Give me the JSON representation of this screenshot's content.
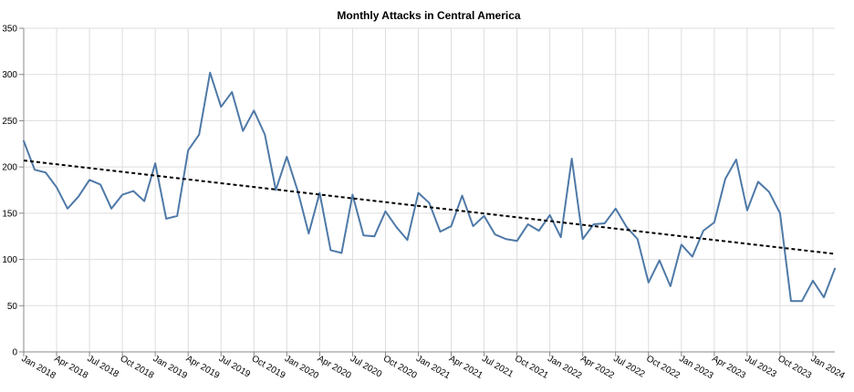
{
  "chart_data": {
    "type": "line",
    "title": "Monthly Attacks in Central America",
    "xlabel": "",
    "ylabel": "",
    "ylim": [
      0,
      350
    ],
    "y_ticks": [
      0,
      50,
      100,
      150,
      200,
      250,
      300,
      350
    ],
    "grid": true,
    "legend": "none",
    "x_tick_labels": [
      "Jan 2018",
      "Apr 2018",
      "Jul 2018",
      "Oct 2018",
      "Jan 2019",
      "Apr 2019",
      "Jul 2019",
      "Oct 2019",
      "Jan 2020",
      "Apr 2020",
      "Jul 2020",
      "Oct 2020",
      "Jan 2021",
      "Apr 2021",
      "Jul 2021",
      "Oct 2021",
      "Jan 2022",
      "Apr 2022",
      "Jul 2022",
      "Oct 2022",
      "Jan 2023",
      "Apr 2023",
      "Jul 2023",
      "Oct 2023",
      "Jan 2024"
    ],
    "x": [
      "2018-01",
      "2018-02",
      "2018-03",
      "2018-04",
      "2018-05",
      "2018-06",
      "2018-07",
      "2018-08",
      "2018-09",
      "2018-10",
      "2018-11",
      "2018-12",
      "2019-01",
      "2019-02",
      "2019-03",
      "2019-04",
      "2019-05",
      "2019-06",
      "2019-07",
      "2019-08",
      "2019-09",
      "2019-10",
      "2019-11",
      "2019-12",
      "2020-01",
      "2020-02",
      "2020-03",
      "2020-04",
      "2020-05",
      "2020-06",
      "2020-07",
      "2020-08",
      "2020-09",
      "2020-10",
      "2020-11",
      "2020-12",
      "2021-01",
      "2021-02",
      "2021-03",
      "2021-04",
      "2021-05",
      "2021-06",
      "2021-07",
      "2021-08",
      "2021-09",
      "2021-10",
      "2021-11",
      "2021-12",
      "2022-01",
      "2022-02",
      "2022-03",
      "2022-04",
      "2022-05",
      "2022-06",
      "2022-07",
      "2022-08",
      "2022-09",
      "2022-10",
      "2022-11",
      "2022-12",
      "2023-01",
      "2023-02",
      "2023-03",
      "2023-04",
      "2023-05",
      "2023-06",
      "2023-07",
      "2023-08",
      "2023-09",
      "2023-10",
      "2023-11",
      "2023-12",
      "2024-01",
      "2024-02",
      "2024-03"
    ],
    "series": [
      {
        "color": "#4e79a7",
        "values": [
          228,
          197,
          194,
          178,
          155,
          168,
          186,
          181,
          155,
          170,
          174,
          163,
          204,
          144,
          147,
          218,
          235,
          302,
          265,
          281,
          239,
          261,
          235,
          175,
          211,
          174,
          128,
          172,
          110,
          107,
          170,
          126,
          125,
          152,
          135,
          121,
          172,
          161,
          130,
          136,
          169,
          136,
          147,
          127,
          122,
          120,
          138,
          131,
          148,
          124,
          209,
          122,
          138,
          139,
          155,
          135,
          122,
          75,
          99,
          71,
          116,
          103,
          131,
          140,
          187,
          208,
          153,
          184,
          173,
          150,
          55,
          55,
          77,
          59,
          90
        ]
      },
      {
        "kind": "trendline",
        "style": "dashed",
        "color": "#000000",
        "start": {
          "x": "2018-01",
          "y": 207
        },
        "end": {
          "x": "2024-03",
          "y": 106
        }
      }
    ]
  }
}
